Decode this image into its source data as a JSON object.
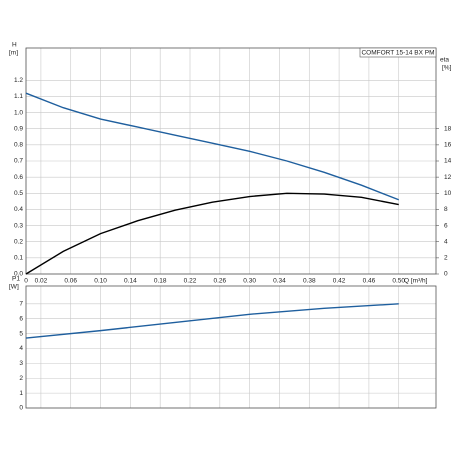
{
  "chart_data": [
    {
      "type": "line",
      "title": "COMFORT 15-14 BX PM",
      "ylabel": "H",
      "yunit": "[m]",
      "y2label": "eta",
      "y2unit": "[%]",
      "xlabel": "Q [m³/h]",
      "x": [
        0,
        0.05,
        0.1,
        0.15,
        0.2,
        0.25,
        0.3,
        0.35,
        0.4,
        0.45,
        0.5
      ],
      "series": [
        {
          "color": "#1f5f9e",
          "values": [
            1.12,
            1.03,
            0.96,
            0.91,
            0.86,
            0.81,
            0.76,
            0.7,
            0.63,
            0.55,
            0.46
          ]
        },
        {
          "color": "#000000",
          "axis": "y2",
          "values": [
            0,
            2.8,
            5.0,
            6.6,
            7.9,
            8.9,
            9.6,
            10.0,
            9.9,
            9.5,
            8.6
          ]
        }
      ],
      "xlim": [
        0,
        0.55
      ],
      "xticks": [
        0,
        0.02,
        0.06,
        {
          "value": 0.1,
          "label": "0.10"
        },
        0.14,
        0.18,
        0.22,
        0.26,
        {
          "value": 0.3,
          "label": "0.30"
        },
        0.34,
        0.38,
        0.42,
        0.46,
        {
          "value": 0.5,
          "label": "0.50"
        }
      ],
      "ylim": [
        0,
        1.4
      ],
      "yticks": [
        {
          "value": 0,
          "label": "0.0"
        },
        0.1,
        0.2,
        0.3,
        0.4,
        0.5,
        0.6,
        0.7,
        0.8,
        0.9,
        {
          "value": 1,
          "label": "1.0"
        },
        1.1,
        1.2
      ],
      "y2lim": [
        0,
        28
      ],
      "y2ticks": [
        0,
        2,
        4,
        6,
        8,
        10,
        12,
        14,
        16,
        18
      ],
      "grid": true
    },
    {
      "type": "line",
      "ylabel": "P1",
      "yunit": "[W]",
      "x": [
        0,
        0.1,
        0.2,
        0.3,
        0.4,
        0.5
      ],
      "series": [
        {
          "color": "#1f5f9e",
          "values": [
            4.7,
            5.2,
            5.75,
            6.3,
            6.7,
            7.0
          ]
        }
      ],
      "xlim": [
        0,
        0.55
      ],
      "xticks": [
        0.02,
        0.06,
        0.1,
        0.14,
        0.18,
        0.22,
        0.26,
        0.3,
        0.34,
        0.38,
        0.42,
        0.46,
        0.5
      ],
      "ylim": [
        0,
        8.2
      ],
      "yticks": [
        0,
        1,
        2,
        3,
        4,
        5,
        6,
        7
      ],
      "grid": true
    }
  ]
}
